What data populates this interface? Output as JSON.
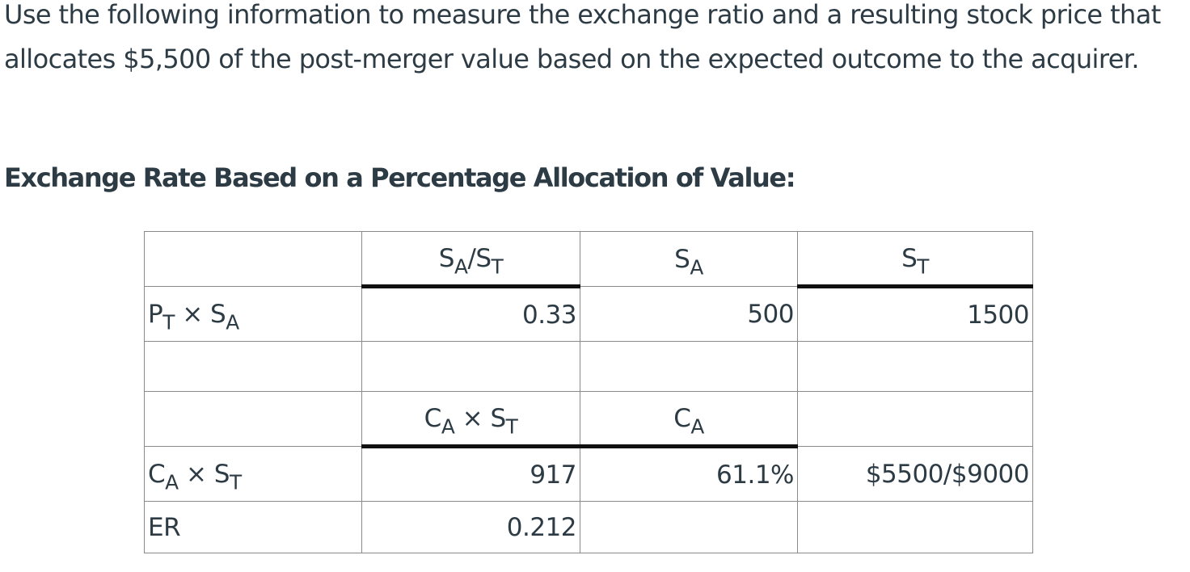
{
  "intro": "Use the following information to measure the exchange ratio and a resulting stock price that allocates $5,500 of the post-merger value based on the expected outcome to the acquirer.",
  "heading": "Exchange Rate Based on a Percentage Allocation of Value:",
  "table": {
    "row1": {
      "col2": {
        "base": "S",
        "sub": "A",
        "mid": "/S",
        "sub2": "T"
      },
      "col3": {
        "base": "S",
        "sub": "A"
      },
      "col4": {
        "base": "S",
        "sub": "T"
      }
    },
    "row2": {
      "label": {
        "a": "P",
        "a_sub": "T",
        "op": " × S",
        "b_sub": "A"
      },
      "col2": "0.33",
      "col3": "500",
      "col4": "1500"
    },
    "row4": {
      "col2": {
        "a": "C",
        "a_sub": "A",
        "op": " × S",
        "b_sub": "T"
      },
      "col3": {
        "base": "C",
        "sub": "A"
      }
    },
    "row5": {
      "label": {
        "a": "C",
        "a_sub": "A",
        "op": " × S",
        "b_sub": "T"
      },
      "col2": "917",
      "col3": "61.1%",
      "col4": "$5500/$9000"
    },
    "row6": {
      "label": "ER",
      "col2": "0.212"
    }
  }
}
